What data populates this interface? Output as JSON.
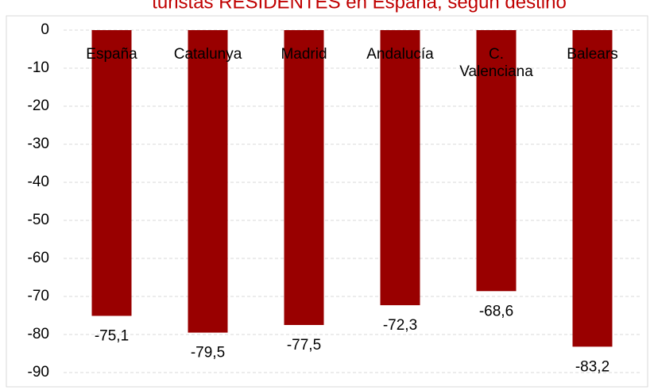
{
  "chart_data": {
    "type": "bar",
    "title": "turistas RESIDENTES en España, según destino",
    "categories": [
      "España",
      "Catalunya",
      "Madrid",
      "Andalucía",
      "C. Valenciana",
      "Balears"
    ],
    "values": [
      -75.1,
      -79.5,
      -77.5,
      -72.3,
      -68.6,
      -83.2
    ],
    "value_labels": [
      "-75,1",
      "-79,5",
      "-77,5",
      "-72,3",
      "-68,6",
      "-83,2"
    ],
    "color": "#990000",
    "ylim": [
      -90,
      0
    ],
    "yticks": [
      0,
      -10,
      -20,
      -30,
      -40,
      -50,
      -60,
      -70,
      -80,
      -90
    ],
    "grid": true
  }
}
